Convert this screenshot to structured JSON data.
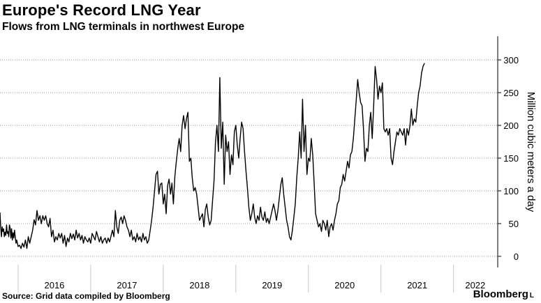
{
  "header": {
    "title": "Europe's Record LNG Year",
    "subtitle": "Flows from LNG terminals in northwest Europe"
  },
  "footer": {
    "source": "Source: Grid data compiled by Bloomberg",
    "brand": "Bloomberg",
    "brand_mark": "L"
  },
  "chart_data": {
    "type": "line",
    "title": "Europe's Record LNG Year",
    "subtitle": "Flows from LNG terminals in northwest Europe",
    "xlabel": "",
    "ylabel": "Million cubic meters a day",
    "ylim": [
      0,
      325
    ],
    "yticks": [
      0,
      50,
      100,
      150,
      200,
      250,
      300
    ],
    "xticks": [
      "2016",
      "2017",
      "2018",
      "2019",
      "2020",
      "2021",
      "2022"
    ],
    "xlim": [
      2015.75,
      2022.6
    ],
    "grid": "horizontal-dotted",
    "y_axis_side": "right",
    "line_color": "#000000",
    "series": [
      {
        "values": [
          [
            2015.75,
            67
          ],
          [
            2015.76,
            45
          ],
          [
            2015.77,
            30
          ],
          [
            2015.78,
            45
          ],
          [
            2015.79,
            38
          ],
          [
            2015.8,
            42
          ],
          [
            2015.81,
            30
          ],
          [
            2015.82,
            37
          ],
          [
            2015.83,
            32
          ],
          [
            2015.84,
            48
          ],
          [
            2015.85,
            35
          ],
          [
            2015.86,
            38
          ],
          [
            2015.87,
            30
          ],
          [
            2015.88,
            48
          ],
          [
            2015.89,
            43
          ],
          [
            2015.9,
            28
          ],
          [
            2015.91,
            42
          ],
          [
            2015.92,
            25
          ],
          [
            2015.93,
            36
          ],
          [
            2015.94,
            28
          ],
          [
            2015.95,
            40
          ],
          [
            2015.96,
            30
          ],
          [
            2015.97,
            20
          ],
          [
            2015.98,
            25
          ],
          [
            2016.0,
            15
          ],
          [
            2016.02,
            17
          ],
          [
            2016.04,
            12
          ],
          [
            2016.06,
            20
          ],
          [
            2016.08,
            14
          ],
          [
            2016.1,
            25
          ],
          [
            2016.12,
            12
          ],
          [
            2016.14,
            30
          ],
          [
            2016.16,
            20
          ],
          [
            2016.18,
            30
          ],
          [
            2016.2,
            40
          ],
          [
            2016.22,
            56
          ],
          [
            2016.24,
            48
          ],
          [
            2016.26,
            70
          ],
          [
            2016.28,
            55
          ],
          [
            2016.3,
            62
          ],
          [
            2016.32,
            50
          ],
          [
            2016.34,
            62
          ],
          [
            2016.36,
            55
          ],
          [
            2016.38,
            62
          ],
          [
            2016.4,
            50
          ],
          [
            2016.42,
            45
          ],
          [
            2016.44,
            58
          ],
          [
            2016.46,
            30
          ],
          [
            2016.48,
            40
          ],
          [
            2016.5,
            22
          ],
          [
            2016.52,
            30
          ],
          [
            2016.54,
            25
          ],
          [
            2016.56,
            35
          ],
          [
            2016.58,
            28
          ],
          [
            2016.6,
            35
          ],
          [
            2016.62,
            20
          ],
          [
            2016.64,
            32
          ],
          [
            2016.66,
            15
          ],
          [
            2016.68,
            28
          ],
          [
            2016.7,
            22
          ],
          [
            2016.72,
            35
          ],
          [
            2016.74,
            27
          ],
          [
            2016.76,
            34
          ],
          [
            2016.78,
            25
          ],
          [
            2016.8,
            40
          ],
          [
            2016.82,
            28
          ],
          [
            2016.84,
            35
          ],
          [
            2016.86,
            25
          ],
          [
            2016.88,
            32
          ],
          [
            2016.9,
            20
          ],
          [
            2016.92,
            30
          ],
          [
            2016.94,
            25
          ],
          [
            2016.96,
            22
          ],
          [
            2016.98,
            28
          ],
          [
            2017.0,
            20
          ],
          [
            2017.02,
            35
          ],
          [
            2017.04,
            30
          ],
          [
            2017.06,
            25
          ],
          [
            2017.08,
            38
          ],
          [
            2017.1,
            30
          ],
          [
            2017.12,
            22
          ],
          [
            2017.14,
            30
          ],
          [
            2017.16,
            20
          ],
          [
            2017.18,
            25
          ],
          [
            2017.2,
            28
          ],
          [
            2017.22,
            20
          ],
          [
            2017.24,
            28
          ],
          [
            2017.26,
            22
          ],
          [
            2017.3,
            40
          ],
          [
            2017.32,
            30
          ],
          [
            2017.34,
            70
          ],
          [
            2017.36,
            45
          ],
          [
            2017.38,
            35
          ],
          [
            2017.4,
            55
          ],
          [
            2017.42,
            60
          ],
          [
            2017.44,
            50
          ],
          [
            2017.46,
            62
          ],
          [
            2017.48,
            55
          ],
          [
            2017.5,
            45
          ],
          [
            2017.52,
            40
          ],
          [
            2017.54,
            30
          ],
          [
            2017.56,
            40
          ],
          [
            2017.58,
            25
          ],
          [
            2017.6,
            30
          ],
          [
            2017.62,
            22
          ],
          [
            2017.64,
            35
          ],
          [
            2017.66,
            25
          ],
          [
            2017.68,
            30
          ],
          [
            2017.7,
            22
          ],
          [
            2017.72,
            35
          ],
          [
            2017.74,
            25
          ],
          [
            2017.76,
            30
          ],
          [
            2017.78,
            20
          ],
          [
            2017.8,
            25
          ],
          [
            2017.82,
            40
          ],
          [
            2017.84,
            55
          ],
          [
            2017.86,
            75
          ],
          [
            2017.88,
            100
          ],
          [
            2017.9,
            125
          ],
          [
            2017.92,
            130
          ],
          [
            2017.94,
            95
          ],
          [
            2017.96,
            110
          ],
          [
            2017.98,
            112
          ],
          [
            2018.0,
            80
          ],
          [
            2018.02,
            95
          ],
          [
            2018.04,
            65
          ],
          [
            2018.06,
            108
          ],
          [
            2018.08,
            118
          ],
          [
            2018.1,
            95
          ],
          [
            2018.12,
            112
          ],
          [
            2018.14,
            80
          ],
          [
            2018.16,
            122
          ],
          [
            2018.18,
            145
          ],
          [
            2018.2,
            165
          ],
          [
            2018.22,
            180
          ],
          [
            2018.24,
            160
          ],
          [
            2018.26,
            200
          ],
          [
            2018.28,
            215
          ],
          [
            2018.3,
            195
          ],
          [
            2018.32,
            210
          ],
          [
            2018.34,
            220
          ],
          [
            2018.36,
            145
          ],
          [
            2018.38,
            150
          ],
          [
            2018.4,
            120
          ],
          [
            2018.42,
            100
          ],
          [
            2018.44,
            105
          ],
          [
            2018.46,
            95
          ],
          [
            2018.48,
            75
          ],
          [
            2018.5,
            55
          ],
          [
            2018.52,
            60
          ],
          [
            2018.54,
            65
          ],
          [
            2018.56,
            45
          ],
          [
            2018.58,
            72
          ],
          [
            2018.6,
            80
          ],
          [
            2018.62,
            60
          ],
          [
            2018.64,
            48
          ],
          [
            2018.66,
            55
          ],
          [
            2018.68,
            85
          ],
          [
            2018.7,
            115
          ],
          [
            2018.72,
            175
          ],
          [
            2018.74,
            200
          ],
          [
            2018.76,
            160
          ],
          [
            2018.78,
            273
          ],
          [
            2018.8,
            165
          ],
          [
            2018.82,
            205
          ],
          [
            2018.84,
            110
          ],
          [
            2018.86,
            185
          ],
          [
            2018.88,
            160
          ],
          [
            2018.9,
            175
          ],
          [
            2018.92,
            125
          ],
          [
            2018.94,
            155
          ],
          [
            2018.96,
            140
          ],
          [
            2018.98,
            190
          ],
          [
            2019.0,
            200
          ],
          [
            2019.02,
            170
          ],
          [
            2019.04,
            150
          ],
          [
            2019.06,
            180
          ],
          [
            2019.08,
            205
          ],
          [
            2019.1,
            195
          ],
          [
            2019.12,
            160
          ],
          [
            2019.14,
            130
          ],
          [
            2019.16,
            105
          ],
          [
            2019.18,
            75
          ],
          [
            2019.2,
            55
          ],
          [
            2019.22,
            65
          ],
          [
            2019.24,
            80
          ],
          [
            2019.26,
            60
          ],
          [
            2019.28,
            50
          ],
          [
            2019.3,
            62
          ],
          [
            2019.32,
            55
          ],
          [
            2019.34,
            75
          ],
          [
            2019.36,
            60
          ],
          [
            2019.38,
            55
          ],
          [
            2019.4,
            68
          ],
          [
            2019.42,
            52
          ],
          [
            2019.44,
            58
          ],
          [
            2019.46,
            50
          ],
          [
            2019.48,
            60
          ],
          [
            2019.5,
            70
          ],
          [
            2019.52,
            80
          ],
          [
            2019.54,
            70
          ],
          [
            2019.56,
            55
          ],
          [
            2019.58,
            70
          ],
          [
            2019.6,
            90
          ],
          [
            2019.62,
            110
          ],
          [
            2019.64,
            120
          ],
          [
            2019.66,
            95
          ],
          [
            2019.68,
            75
          ],
          [
            2019.7,
            55
          ],
          [
            2019.72,
            45
          ],
          [
            2019.74,
            30
          ],
          [
            2019.76,
            25
          ],
          [
            2019.78,
            40
          ],
          [
            2019.8,
            60
          ],
          [
            2019.82,
            80
          ],
          [
            2019.84,
            120
          ],
          [
            2019.86,
            150
          ],
          [
            2019.88,
            190
          ],
          [
            2019.9,
            150
          ],
          [
            2019.92,
            240
          ],
          [
            2019.94,
            160
          ],
          [
            2019.96,
            200
          ],
          [
            2019.98,
            125
          ],
          [
            2020.0,
            150
          ],
          [
            2020.02,
            145
          ],
          [
            2020.04,
            180
          ],
          [
            2020.06,
            155
          ],
          [
            2020.08,
            110
          ],
          [
            2020.1,
            65
          ],
          [
            2020.12,
            55
          ],
          [
            2020.14,
            45
          ],
          [
            2020.16,
            50
          ],
          [
            2020.18,
            38
          ],
          [
            2020.2,
            55
          ],
          [
            2020.22,
            50
          ],
          [
            2020.24,
            40
          ],
          [
            2020.26,
            55
          ],
          [
            2020.28,
            30
          ],
          [
            2020.3,
            45
          ],
          [
            2020.32,
            50
          ],
          [
            2020.34,
            40
          ],
          [
            2020.36,
            55
          ],
          [
            2020.38,
            65
          ],
          [
            2020.4,
            80
          ],
          [
            2020.42,
            85
          ],
          [
            2020.44,
            105
          ],
          [
            2020.46,
            110
          ],
          [
            2020.48,
            125
          ],
          [
            2020.5,
            115
          ],
          [
            2020.52,
            130
          ],
          [
            2020.54,
            145
          ],
          [
            2020.56,
            135
          ],
          [
            2020.58,
            155
          ],
          [
            2020.6,
            160
          ],
          [
            2020.62,
            180
          ],
          [
            2020.64,
            210
          ],
          [
            2020.66,
            240
          ],
          [
            2020.68,
            270
          ],
          [
            2020.7,
            250
          ],
          [
            2020.72,
            235
          ],
          [
            2020.74,
            230
          ],
          [
            2020.76,
            195
          ],
          [
            2020.78,
            145
          ],
          [
            2020.8,
            165
          ],
          [
            2020.82,
            160
          ],
          [
            2020.84,
            200
          ],
          [
            2020.86,
            220
          ],
          [
            2020.88,
            180
          ],
          [
            2020.9,
            230
          ],
          [
            2020.92,
            290
          ],
          [
            2020.94,
            270
          ],
          [
            2020.96,
            240
          ],
          [
            2020.98,
            260
          ],
          [
            2021.0,
            250
          ],
          [
            2021.02,
            265
          ],
          [
            2021.04,
            195
          ],
          [
            2021.06,
            190
          ],
          [
            2021.08,
            195
          ],
          [
            2021.1,
            185
          ],
          [
            2021.12,
            195
          ],
          [
            2021.14,
            150
          ],
          [
            2021.16,
            140
          ],
          [
            2021.18,
            160
          ],
          [
            2021.2,
            175
          ],
          [
            2021.22,
            190
          ],
          [
            2021.24,
            185
          ],
          [
            2021.26,
            195
          ],
          [
            2021.28,
            190
          ],
          [
            2021.3,
            185
          ],
          [
            2021.32,
            195
          ],
          [
            2021.34,
            170
          ],
          [
            2021.36,
            195
          ],
          [
            2021.38,
            185
          ],
          [
            2021.4,
            200
          ],
          [
            2021.42,
            225
          ],
          [
            2021.44,
            200
          ],
          [
            2021.46,
            210
          ],
          [
            2021.48,
            205
          ],
          [
            2021.5,
            230
          ],
          [
            2021.52,
            250
          ],
          [
            2021.54,
            260
          ],
          [
            2021.56,
            280
          ],
          [
            2021.58,
            290
          ],
          [
            2021.6,
            295
          ]
        ]
      }
    ]
  }
}
